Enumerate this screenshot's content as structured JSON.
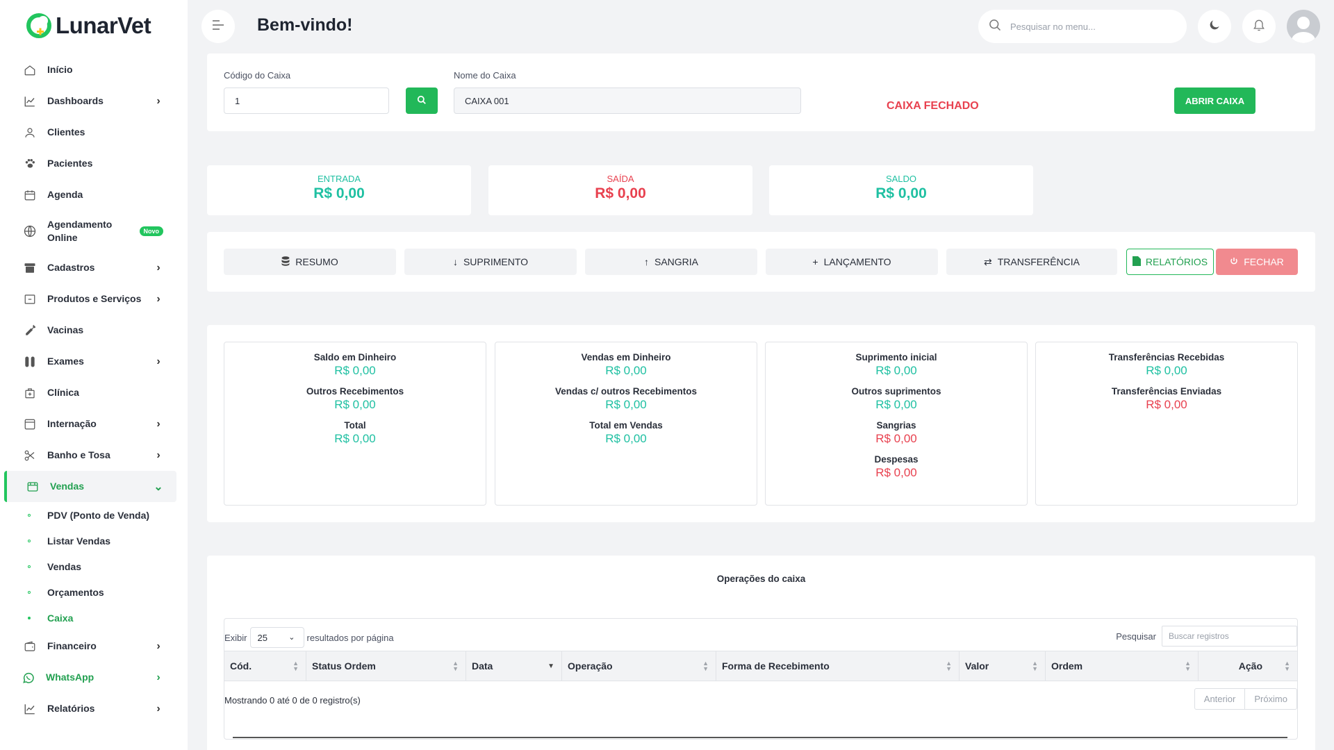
{
  "app": {
    "name": "LunarVet",
    "title": "Bem-vindo!"
  },
  "sidebar": {
    "items": [
      {
        "label": "Início",
        "icon": "home-icon",
        "chevron": false
      },
      {
        "label": "Dashboards",
        "icon": "chart-line-icon",
        "chevron": true
      },
      {
        "label": "Clientes",
        "icon": "user-icon",
        "chevron": false
      },
      {
        "label": "Pacientes",
        "icon": "paw-icon",
        "chevron": false
      },
      {
        "label": "Agenda",
        "icon": "calendar-icon",
        "chevron": false
      },
      {
        "label": "Agendamento Online",
        "icon": "globe-icon",
        "badge": "Novo"
      },
      {
        "label": "Cadastros",
        "icon": "archive-icon",
        "chevron": true
      },
      {
        "label": "Produtos e Serviços",
        "icon": "box-icon",
        "chevron": true
      },
      {
        "label": "Vacinas",
        "icon": "syringe-icon",
        "chevron": false
      },
      {
        "label": "Exames",
        "icon": "test-tube-icon",
        "chevron": true
      },
      {
        "label": "Clínica",
        "icon": "clinic-bag-icon",
        "chevron": false
      },
      {
        "label": "Internação",
        "icon": "window-icon",
        "chevron": true
      },
      {
        "label": "Banho e Tosa",
        "icon": "scissors-icon",
        "chevron": true
      },
      {
        "label": "Vendas",
        "icon": "store-icon",
        "active": true
      },
      {
        "label": "Financeiro",
        "icon": "wallet-icon",
        "chevron": true
      },
      {
        "label": "WhatsApp",
        "icon": "whatsapp-icon",
        "chevron": true
      },
      {
        "label": "Relatórios",
        "icon": "chart-line-icon",
        "chevron": true
      }
    ],
    "vendas_sub": [
      "PDV (Ponto de Venda)",
      "Listar Vendas",
      "Vendas",
      "Orçamentos",
      "Caixa"
    ],
    "badge_new": "Novo"
  },
  "header": {
    "search_placeholder": "Pesquisar no menu..."
  },
  "caixa": {
    "codigo_label": "Código do Caixa",
    "codigo_value": "1",
    "nome_label": "Nome do Caixa",
    "nome_value": "CAIXA 001",
    "status": "CAIXA FECHADO",
    "abrir_label": "ABRIR CAIXA"
  },
  "summary": {
    "entrada_label": "ENTRADA",
    "entrada_value": "R$ 0,00",
    "saida_label": "SAÍDA",
    "saida_value": "R$ 0,00",
    "saldo_label": "SALDO",
    "saldo_value": "R$ 0,00"
  },
  "tabs": {
    "resumo": "RESUMO",
    "suprimento": "SUPRIMENTO",
    "sangria": "SANGRIA",
    "lancamento": "LANÇAMENTO",
    "transferencia": "TRANSFERÊNCIA",
    "relatorios": "RELATÓRIOS",
    "fechar": "FECHAR"
  },
  "details": {
    "col1": [
      {
        "k": "Saldo em Dinheiro",
        "v": "R$ 0,00"
      },
      {
        "k": "Outros Recebimentos",
        "v": "R$ 0,00"
      },
      {
        "k": "Total",
        "v": "R$ 0,00"
      }
    ],
    "col2": [
      {
        "k": "Vendas em Dinheiro",
        "v": "R$ 0,00"
      },
      {
        "k": "Vendas c/ outros Recebimentos",
        "v": "R$ 0,00"
      },
      {
        "k": "Total em Vendas",
        "v": "R$ 0,00"
      }
    ],
    "col3": [
      {
        "k": "Suprimento inicial",
        "v": "R$ 0,00"
      },
      {
        "k": "Outros suprimentos",
        "v": "R$ 0,00"
      },
      {
        "k": "Sangrias",
        "v": "R$ 0,00"
      },
      {
        "k": "Despesas",
        "v": "R$ 0,00"
      }
    ],
    "col4": [
      {
        "k": "Transferências Recebidas",
        "v": "R$ 0,00"
      },
      {
        "k": "Transferências Enviadas",
        "v": "R$ 0,00"
      }
    ]
  },
  "operations": {
    "title": "Operações do caixa",
    "show_label": "Exibir",
    "page_size": "25",
    "per_page_label": "resultados por página",
    "search_label": "Pesquisar",
    "search_placeholder": "Buscar registros",
    "columns": [
      "Cód.",
      "Status Ordem",
      "Data",
      "Operação",
      "Forma de Recebimento",
      "Valor",
      "Ordem",
      "Ação"
    ],
    "info": "Mostrando 0 até 0 de 0 registro(s)",
    "prev": "Anterior",
    "next": "Próximo"
  },
  "colors": {
    "brand_green": "#22b859",
    "value_green": "#1fc0a2",
    "value_red": "#e8414f"
  }
}
